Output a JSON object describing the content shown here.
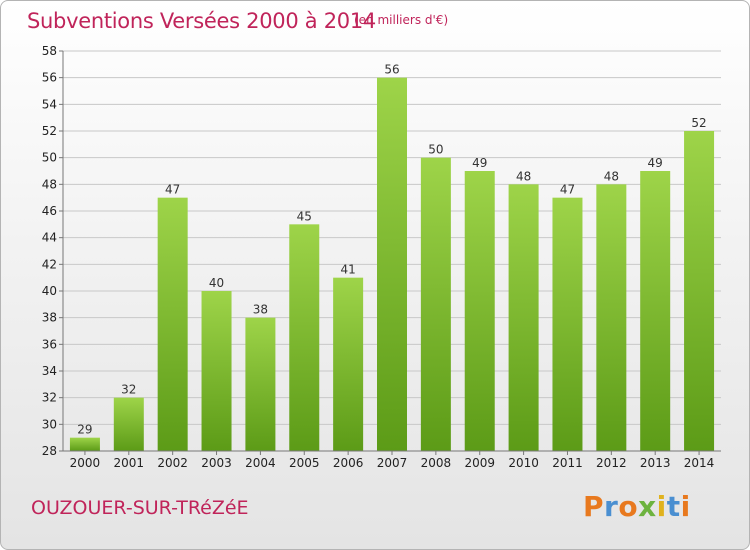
{
  "header": {
    "title": "Subventions Versées 2000 à 2014",
    "unit": "(en milliers d'€)"
  },
  "footer": {
    "commune": "OUZOUER-SUR-TRéZéE",
    "brand": {
      "letters": [
        "P",
        "r",
        "o",
        "x",
        "i",
        "t",
        "i"
      ],
      "colors": [
        "#e8791e",
        "#4a8fd1",
        "#e8791e",
        "#6db33f",
        "#e0b21e",
        "#4a8fd1",
        "#e8791e"
      ]
    }
  },
  "colors": {
    "bar_light": "#9ed449",
    "bar_dark": "#5c9b17",
    "grid": "#c8c8c8",
    "axis": "#777777",
    "text_accent": "#c0245a"
  },
  "chart_data": {
    "type": "bar",
    "categories": [
      "2000",
      "2001",
      "2002",
      "2003",
      "2004",
      "2005",
      "2006",
      "2007",
      "2008",
      "2009",
      "2010",
      "2011",
      "2012",
      "2013",
      "2014"
    ],
    "values": [
      29,
      32,
      47,
      40,
      38,
      45,
      41,
      56,
      50,
      49,
      48,
      47,
      48,
      49,
      52
    ],
    "title": "Subventions Versées 2000 à 2014",
    "subtitle": "(en milliers d'€)",
    "ylim": [
      28,
      58
    ],
    "yticks": [
      28,
      30,
      32,
      34,
      36,
      38,
      40,
      42,
      44,
      46,
      48,
      50,
      52,
      54,
      56,
      58
    ],
    "grid": true,
    "data_labels": true
  }
}
